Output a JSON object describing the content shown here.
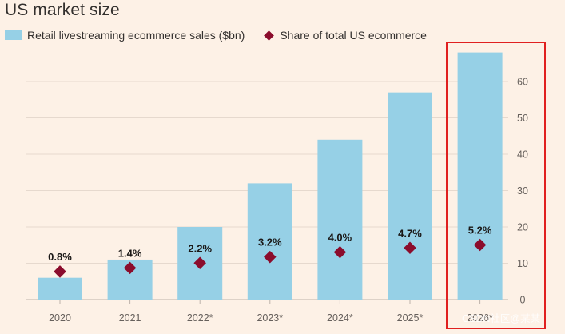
{
  "chart_data": {
    "type": "bar",
    "title": "US market size",
    "categories": [
      "2020",
      "2021",
      "2022*",
      "2023*",
      "2024*",
      "2025*",
      "2026*"
    ],
    "series": [
      {
        "name": "Retail livestreaming ecommerce sales ($bn)",
        "type": "bar",
        "values": [
          6,
          11,
          20,
          32,
          44,
          57,
          68
        ]
      },
      {
        "name": "Share of total US ecommerce",
        "type": "scatter",
        "marker": "diamond",
        "values": [
          0.8,
          1.4,
          2.2,
          3.2,
          4.0,
          4.7,
          5.2
        ],
        "labels": [
          "0.8%",
          "1.4%",
          "2.2%",
          "3.2%",
          "4.0%",
          "4.7%",
          "5.2%"
        ]
      }
    ],
    "yaxis": {
      "side": "right",
      "ticks": [
        0,
        10,
        20,
        30,
        40,
        50,
        60
      ],
      "ylim": [
        0,
        68
      ]
    },
    "grid": true,
    "legend": "top-left"
  },
  "colors": {
    "background": "#fdf1e6",
    "bar": "#96d0e6",
    "marker": "#8b0c2c",
    "grid": "#e6d9ce",
    "axis_text": "#66605c",
    "label_text": "#1a1817",
    "highlight_border": "#e02020"
  },
  "overlay": {
    "watermark": "CSDN社区@某某"
  }
}
